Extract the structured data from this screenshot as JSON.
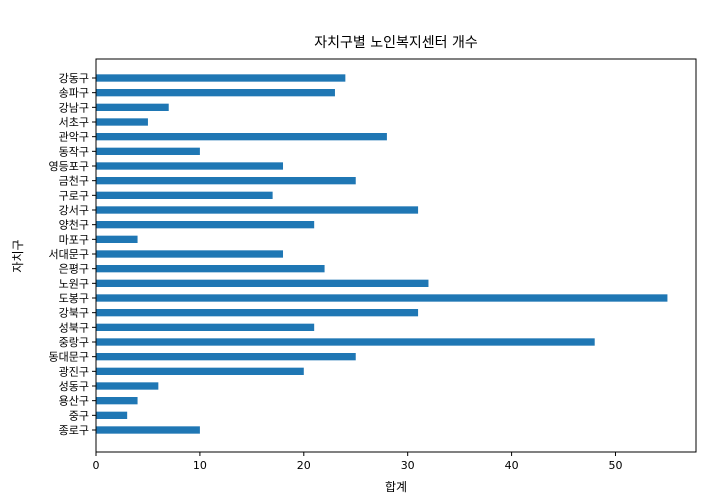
{
  "chart_data": {
    "type": "bar",
    "orientation": "horizontal",
    "title": "자치구별 노인복지센터 개수",
    "xlabel": "합계",
    "ylabel": "자치구",
    "xlim": [
      0,
      57.75
    ],
    "xticks": [
      0,
      10,
      20,
      30,
      40,
      50
    ],
    "grid": false,
    "bar_color": "#1f77b4",
    "categories": [
      "종로구",
      "중구",
      "용산구",
      "성동구",
      "광진구",
      "동대문구",
      "중랑구",
      "성북구",
      "강북구",
      "도봉구",
      "노원구",
      "은평구",
      "서대문구",
      "마포구",
      "양천구",
      "강서구",
      "구로구",
      "금천구",
      "영등포구",
      "동작구",
      "관악구",
      "서초구",
      "강남구",
      "송파구",
      "강동구"
    ],
    "values": [
      10,
      3,
      4,
      6,
      20,
      25,
      48,
      21,
      31,
      55,
      32,
      22,
      18,
      4,
      21,
      31,
      17,
      25,
      18,
      10,
      28,
      5,
      7,
      23,
      24
    ]
  }
}
